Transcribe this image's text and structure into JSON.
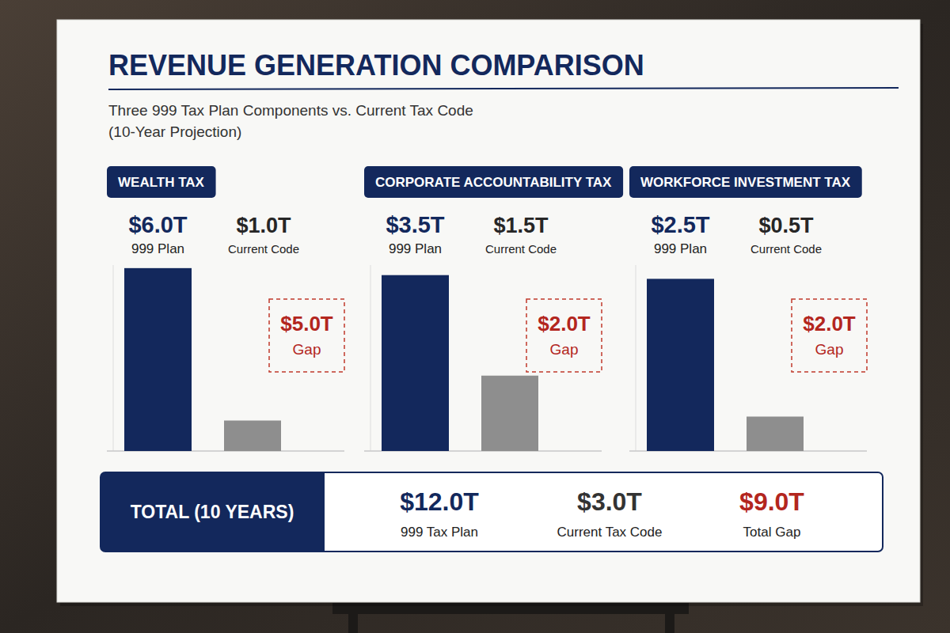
{
  "header": {
    "title": "REVENUE GENERATION COMPARISON",
    "subtitle": [
      "Three 999 Tax Plan Components vs. Current Tax Code",
      "(10-Year Projection)"
    ]
  },
  "chart_data": [
    {
      "type": "bar",
      "title": "WEALTH TAX",
      "categories": [
        "999 Plan",
        "Current Code"
      ],
      "values": [
        6.0,
        1.0
      ],
      "value_labels": [
        "$6.0T",
        "$1.0T"
      ],
      "data_labels": true,
      "colors": [
        "#13285c",
        "#8e8e8e"
      ],
      "ylim": [
        0,
        6.1
      ],
      "tick_labels": false,
      "gap": {
        "label": "$5.0T",
        "text": "Gap"
      }
    },
    {
      "type": "bar",
      "title": "CORPORATE ACCOUNTABILITY TAX",
      "categories": [
        "999 Plan",
        "Current Code"
      ],
      "values": [
        3.5,
        1.5
      ],
      "value_labels": [
        "$3.5T",
        "$1.5T"
      ],
      "data_labels": true,
      "colors": [
        "#13285c",
        "#8e8e8e"
      ],
      "ylim": [
        0,
        3.7
      ],
      "tick_labels": false,
      "gap": {
        "label": "$2.0T",
        "text": "Gap"
      }
    },
    {
      "type": "bar",
      "title": "WORKFORCE INVESTMENT TAX",
      "categories": [
        "999 Plan",
        "Current Code"
      ],
      "values": [
        2.5,
        0.5
      ],
      "value_labels": [
        "$2.5T",
        "$0.5T"
      ],
      "data_labels": true,
      "colors": [
        "#13285c",
        "#8e8e8e"
      ],
      "ylim": [
        0,
        2.7
      ],
      "tick_labels": false,
      "gap": {
        "label": "$2.0T",
        "text": "Gap"
      }
    }
  ],
  "totals": {
    "label": "TOTAL (10 YEARS)",
    "items": [
      {
        "amount": "$12.0T",
        "text": "999 Tax Plan"
      },
      {
        "amount": "$3.0T",
        "text": "Current Tax Code"
      },
      {
        "amount": "$9.0T",
        "text": "Total Gap"
      }
    ]
  }
}
